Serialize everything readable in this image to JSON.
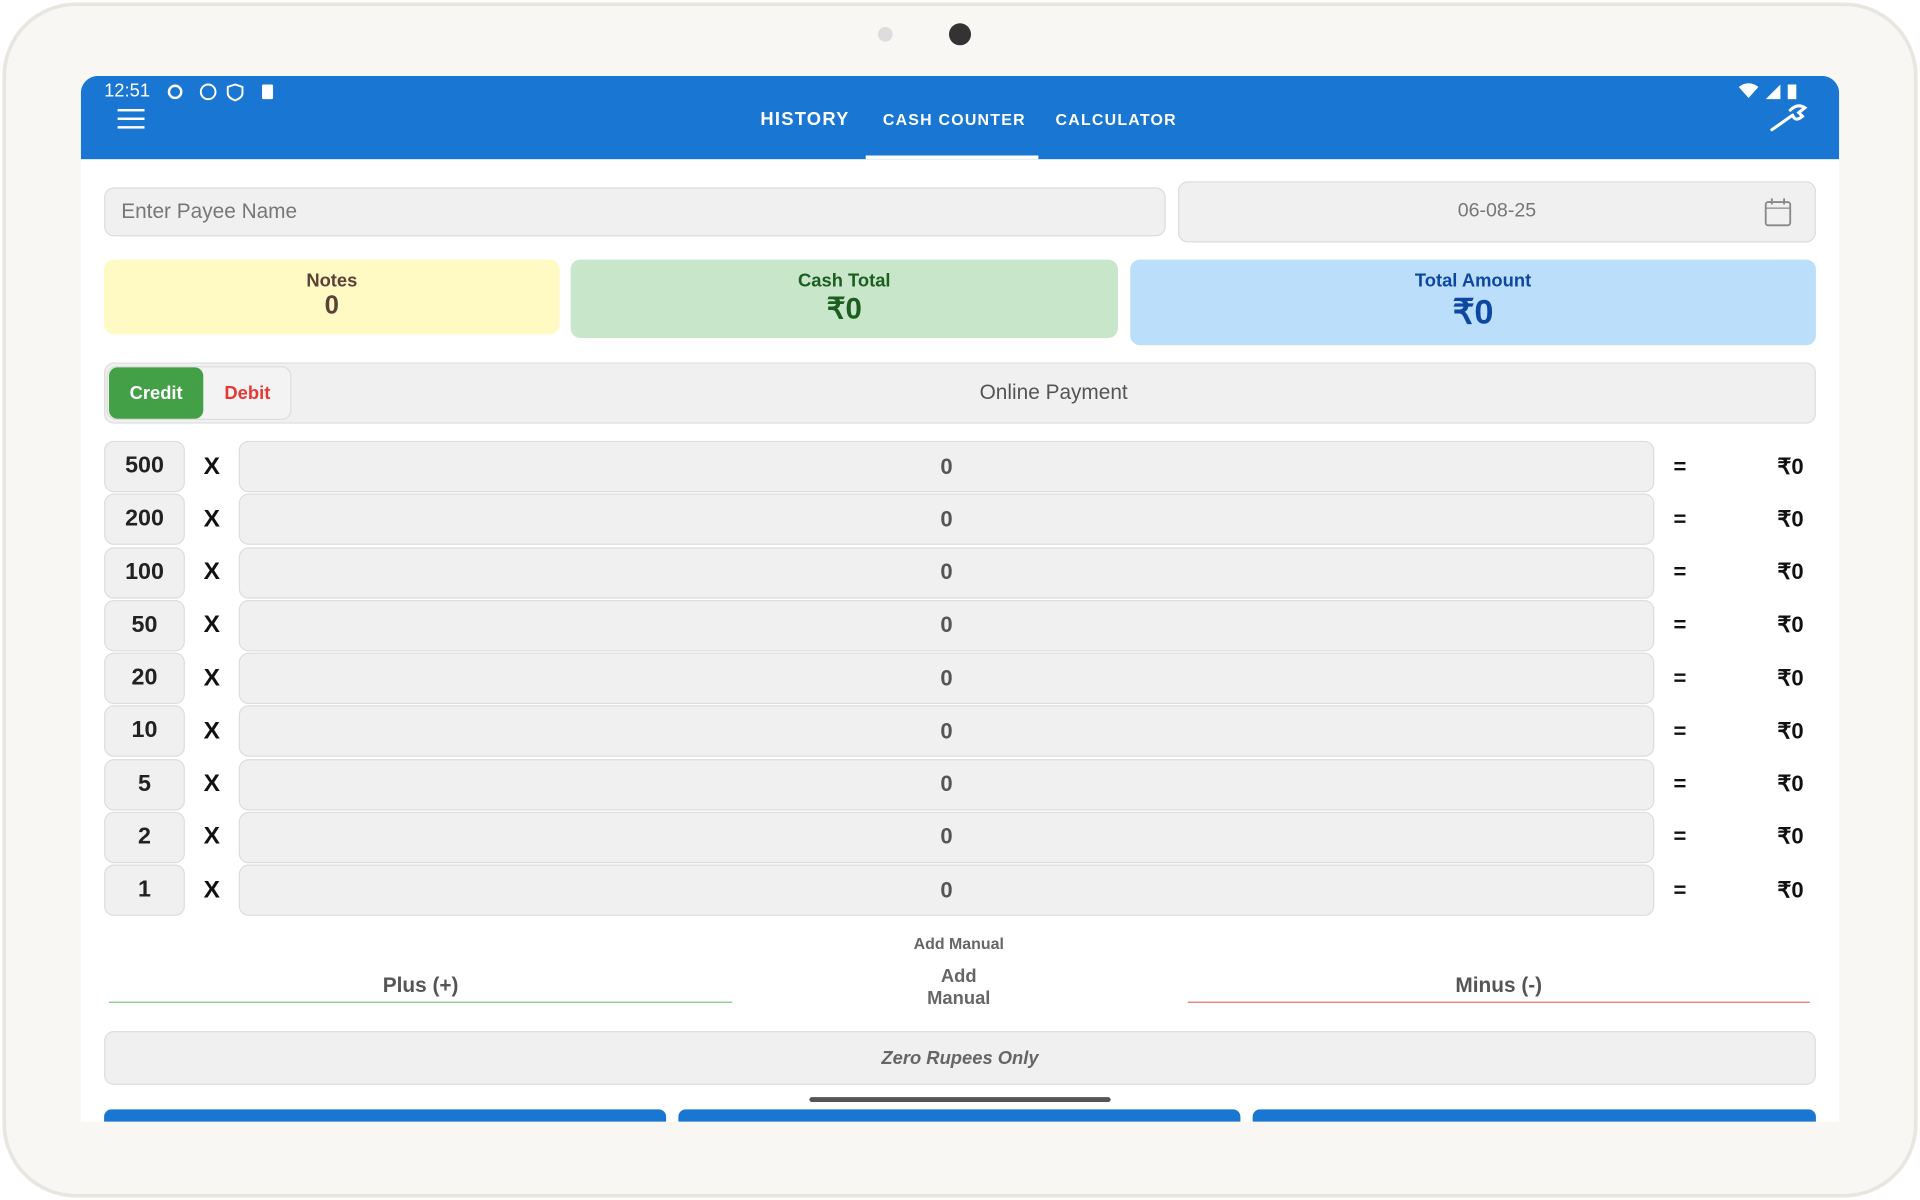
{
  "status_bar": {
    "time": "12:51"
  },
  "tabs": [
    "HISTORY",
    "CASH COUNTER",
    "CALCULATOR"
  ],
  "form": {
    "payee_placeholder": "Enter Payee Name",
    "date": "06-08-25"
  },
  "summary": [
    {
      "label": "Notes",
      "value": "0"
    },
    {
      "label": "Cash Total",
      "value": "₹0"
    },
    {
      "label": "Total Amount",
      "value": "₹0"
    }
  ],
  "payment": {
    "credit": "Credit",
    "debit": "Debit",
    "online": "Online Payment"
  },
  "rows": [
    {
      "denomination": "500",
      "times": "X",
      "count": "0",
      "equals": "=",
      "amount": "₹0"
    },
    {
      "denomination": "200",
      "times": "X",
      "count": "0",
      "equals": "=",
      "amount": "₹0"
    },
    {
      "denomination": "100",
      "times": "X",
      "count": "0",
      "equals": "=",
      "amount": "₹0"
    },
    {
      "denomination": "50",
      "times": "X",
      "count": "0",
      "equals": "=",
      "amount": "₹0"
    },
    {
      "denomination": "20",
      "times": "X",
      "count": "0",
      "equals": "=",
      "amount": "₹0"
    },
    {
      "denomination": "10",
      "times": "X",
      "count": "0",
      "equals": "=",
      "amount": "₹0"
    },
    {
      "denomination": "5",
      "times": "X",
      "count": "0",
      "equals": "=",
      "amount": "₹0"
    },
    {
      "denomination": "2",
      "times": "X",
      "count": "0",
      "equals": "=",
      "amount": "₹0"
    },
    {
      "denomination": "1",
      "times": "X",
      "count": "0",
      "equals": "=",
      "amount": "₹0"
    }
  ],
  "manual": {
    "title": "Add Manual",
    "plus": "Plus (+)",
    "add_line1": "Add",
    "add_line2": "Manual",
    "minus": "Minus (-)"
  },
  "amount_in_words": "Zero Rupees Only"
}
